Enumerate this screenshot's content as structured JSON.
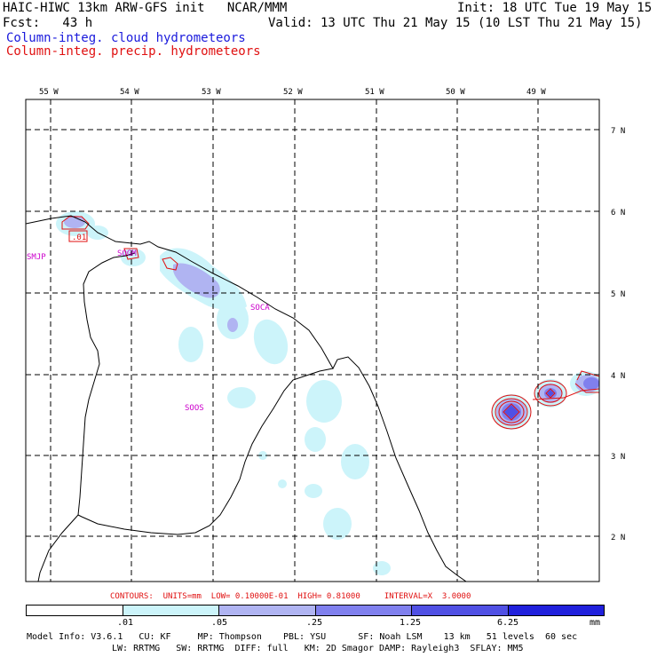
{
  "header": {
    "model_title": "HAIC-HIWC 13km ARW-GFS init   NCAR/MMM",
    "init": "Init: 18 UTC Tue 19 May 15",
    "fcst": "Fcst:   43 h",
    "valid": "Valid: 13 UTC Thu 21 May 15 (10 LST Thu 21 May 15)",
    "field_cloud": "Column-integ. cloud hydrometeors",
    "field_precip": "Column-integ. precip. hydrometeors"
  },
  "map": {
    "lon_labels": [
      "55 W",
      "54 W",
      "53 W",
      "52 W",
      "51 W",
      "50 W",
      "49 W"
    ],
    "lat_labels": [
      "7 N",
      "6 N",
      "5 N",
      "4 N",
      "3 N",
      "2 N"
    ],
    "stations": [
      "SMJP",
      "SOCA",
      "SOOS",
      "SOGM"
    ],
    "contour_label": ".01"
  },
  "contours_line": "CONTOURS:  UNITS=mm  LOW= 0.10000E-01  HIGH= 0.81000     INTERVAL=X  3.0000",
  "colorbar": {
    "unit": "mm",
    "labels": [
      ".01",
      ".05",
      ".25",
      "1.25",
      "6.25"
    ],
    "colors": [
      "#ffffff",
      "#ccf4fa",
      "#b0b4f2",
      "#8080ee",
      "#5050e4",
      "#2020dc"
    ]
  },
  "model_info": {
    "line1": "Model Info: V3.6.1   CU: KF     MP: Thompson    PBL: YSU      SF: Noah LSM    13 km   51 levels  60 sec",
    "line2": "LW: RRTMG   SW: RRTMG  DIFF: full   KM: 2D Smagor DAMP: Rayleigh3  SFLAY: MM5"
  }
}
